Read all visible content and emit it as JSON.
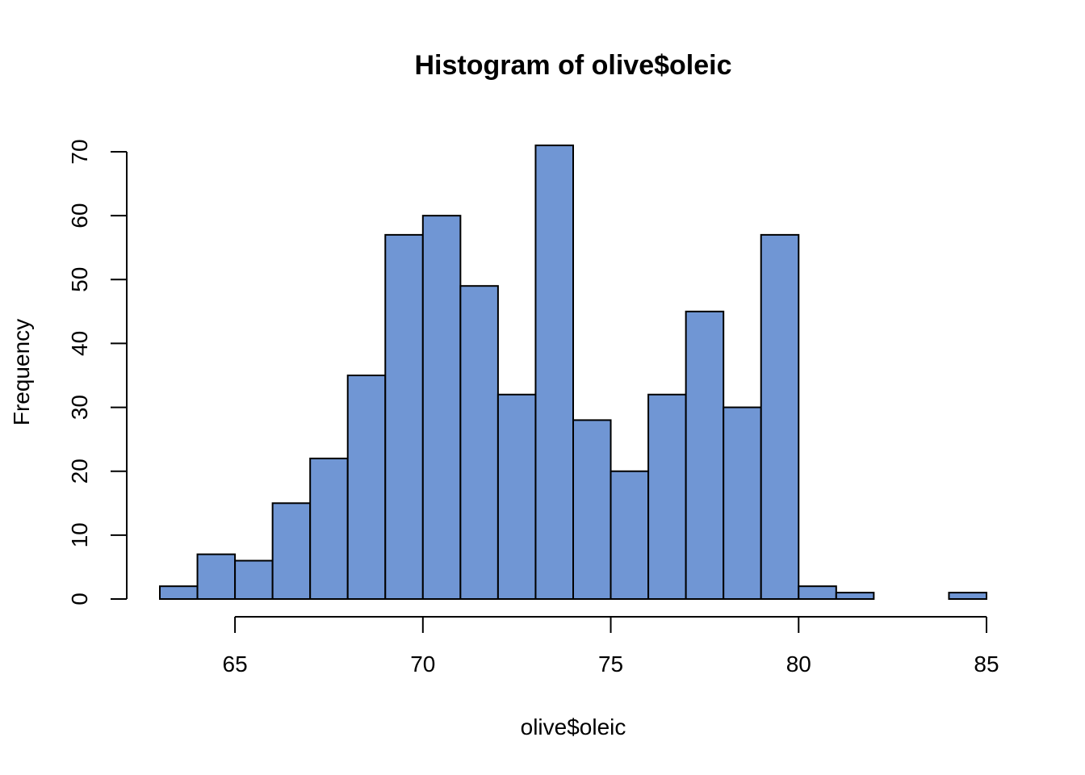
{
  "chart_data": {
    "type": "bar",
    "subtype": "histogram",
    "title": "Histogram of olive$oleic",
    "xlabel": "olive$oleic",
    "ylabel": "Frequency",
    "bin_edges": [
      63,
      64,
      65,
      66,
      67,
      68,
      69,
      70,
      71,
      72,
      73,
      74,
      75,
      76,
      77,
      78,
      79,
      80,
      81,
      82,
      83,
      84,
      85
    ],
    "values": [
      2,
      7,
      6,
      15,
      22,
      35,
      57,
      60,
      49,
      32,
      71,
      28,
      20,
      32,
      45,
      30,
      57,
      2,
      1,
      0,
      0,
      1
    ],
    "xlim": [
      63,
      85
    ],
    "ylim": [
      0,
      70
    ],
    "x_ticks": [
      65,
      70,
      75,
      80,
      85
    ],
    "y_ticks": [
      0,
      10,
      20,
      30,
      40,
      50,
      60,
      70
    ],
    "grid": false,
    "colors": {
      "bar_fill": "#7096d4",
      "bar_stroke": "#000000",
      "axis": "#000000"
    }
  }
}
